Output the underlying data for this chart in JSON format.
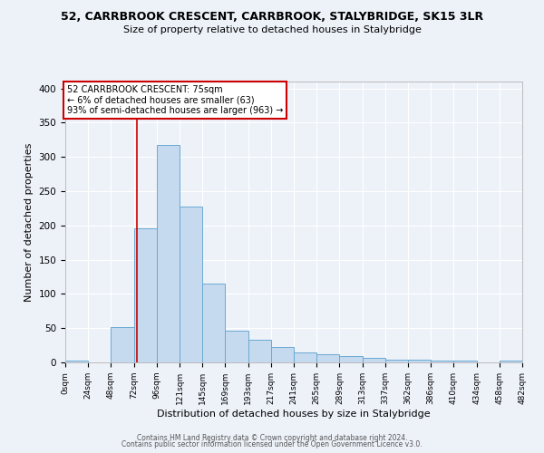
{
  "title": "52, CARRBROOK CRESCENT, CARRBROOK, STALYBRIDGE, SK15 3LR",
  "subtitle": "Size of property relative to detached houses in Stalybridge",
  "xlabel": "Distribution of detached houses by size in Stalybridge",
  "ylabel": "Number of detached properties",
  "bar_color": "#c5d9ef",
  "bar_edge_color": "#6aaad4",
  "background_color": "#edf2f9",
  "annotation_box_color": "#ffffff",
  "annotation_border_color": "#cc0000",
  "annotation_title": "52 CARRBROOK CRESCENT: 75sqm",
  "annotation_line1": "← 6% of detached houses are smaller (63)",
  "annotation_line2": "93% of semi-detached houses are larger (963) →",
  "property_line_x": 75,
  "footer_line1": "Contains HM Land Registry data © Crown copyright and database right 2024.",
  "footer_line2": "Contains public sector information licensed under the Open Government Licence v3.0.",
  "bin_edges": [
    0,
    24,
    48,
    72,
    96,
    120,
    144,
    168,
    192,
    216,
    240,
    264,
    288,
    312,
    336,
    360,
    384,
    408,
    432,
    456,
    480
  ],
  "bin_labels": [
    "0sqm",
    "24sqm",
    "48sqm",
    "72sqm",
    "96sqm",
    "121sqm",
    "145sqm",
    "169sqm",
    "193sqm",
    "217sqm",
    "241sqm",
    "265sqm",
    "289sqm",
    "313sqm",
    "337sqm",
    "362sqm",
    "386sqm",
    "410sqm",
    "434sqm",
    "458sqm",
    "482sqm"
  ],
  "bar_heights": [
    2,
    0,
    51,
    196,
    318,
    228,
    115,
    46,
    33,
    22,
    14,
    12,
    9,
    6,
    4,
    4,
    2,
    2,
    0,
    3
  ],
  "ylim": [
    0,
    410
  ],
  "xlim": [
    0,
    480
  ]
}
